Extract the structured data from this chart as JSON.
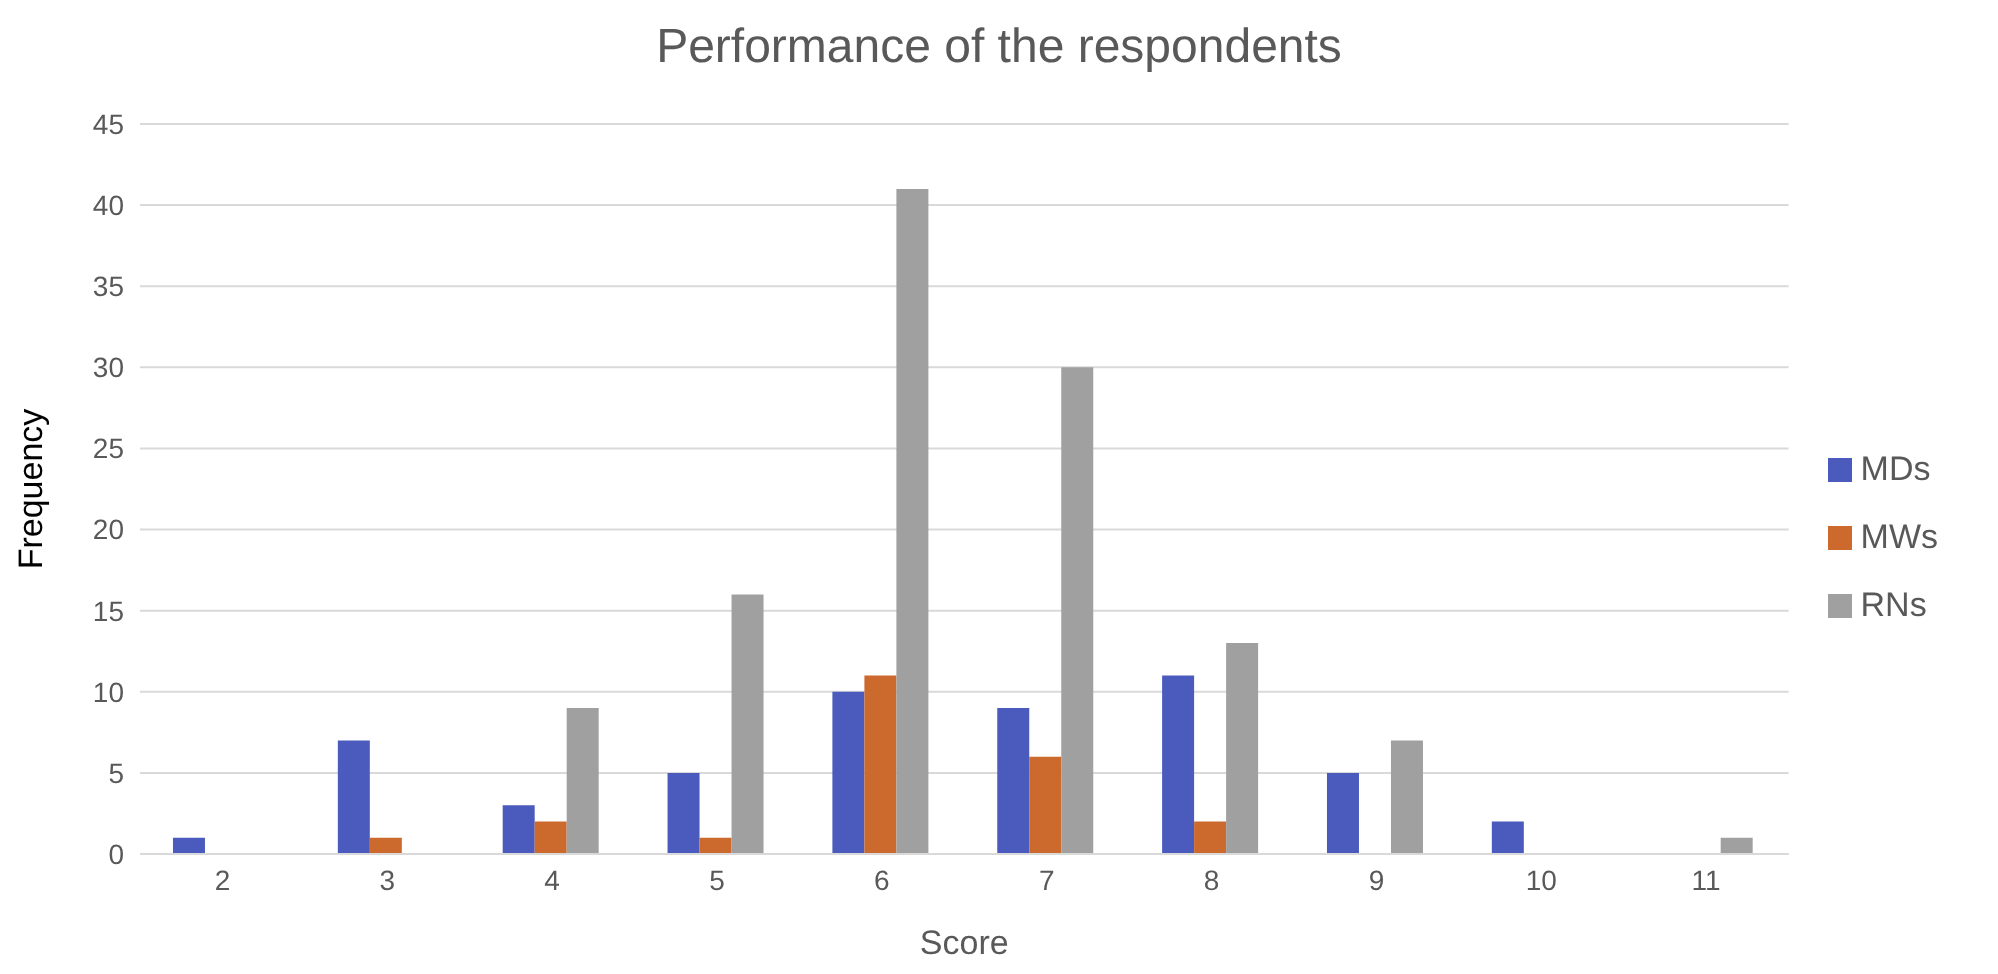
{
  "chart_data": {
    "type": "bar",
    "title": "Performance  of the respondents",
    "xlabel": "Score",
    "ylabel": "Frequency",
    "categories": [
      "2",
      "3",
      "4",
      "5",
      "6",
      "7",
      "8",
      "9",
      "10",
      "11"
    ],
    "series": [
      {
        "name": "MDs",
        "color": "#4a5bbd",
        "values": [
          1,
          7,
          3,
          5,
          10,
          9,
          11,
          5,
          2,
          0
        ]
      },
      {
        "name": "MWs",
        "color": "#cc6a2e",
        "values": [
          0,
          1,
          2,
          1,
          11,
          6,
          2,
          0,
          0,
          0
        ]
      },
      {
        "name": "RNs",
        "color": "#a0a0a0",
        "values": [
          0,
          0,
          9,
          16,
          41,
          30,
          13,
          7,
          0,
          1
        ]
      }
    ],
    "ylim": [
      0,
      45
    ],
    "yticks": [
      0,
      5,
      10,
      15,
      20,
      25,
      30,
      35,
      40,
      45
    ],
    "grid": "y",
    "legend": "right"
  }
}
